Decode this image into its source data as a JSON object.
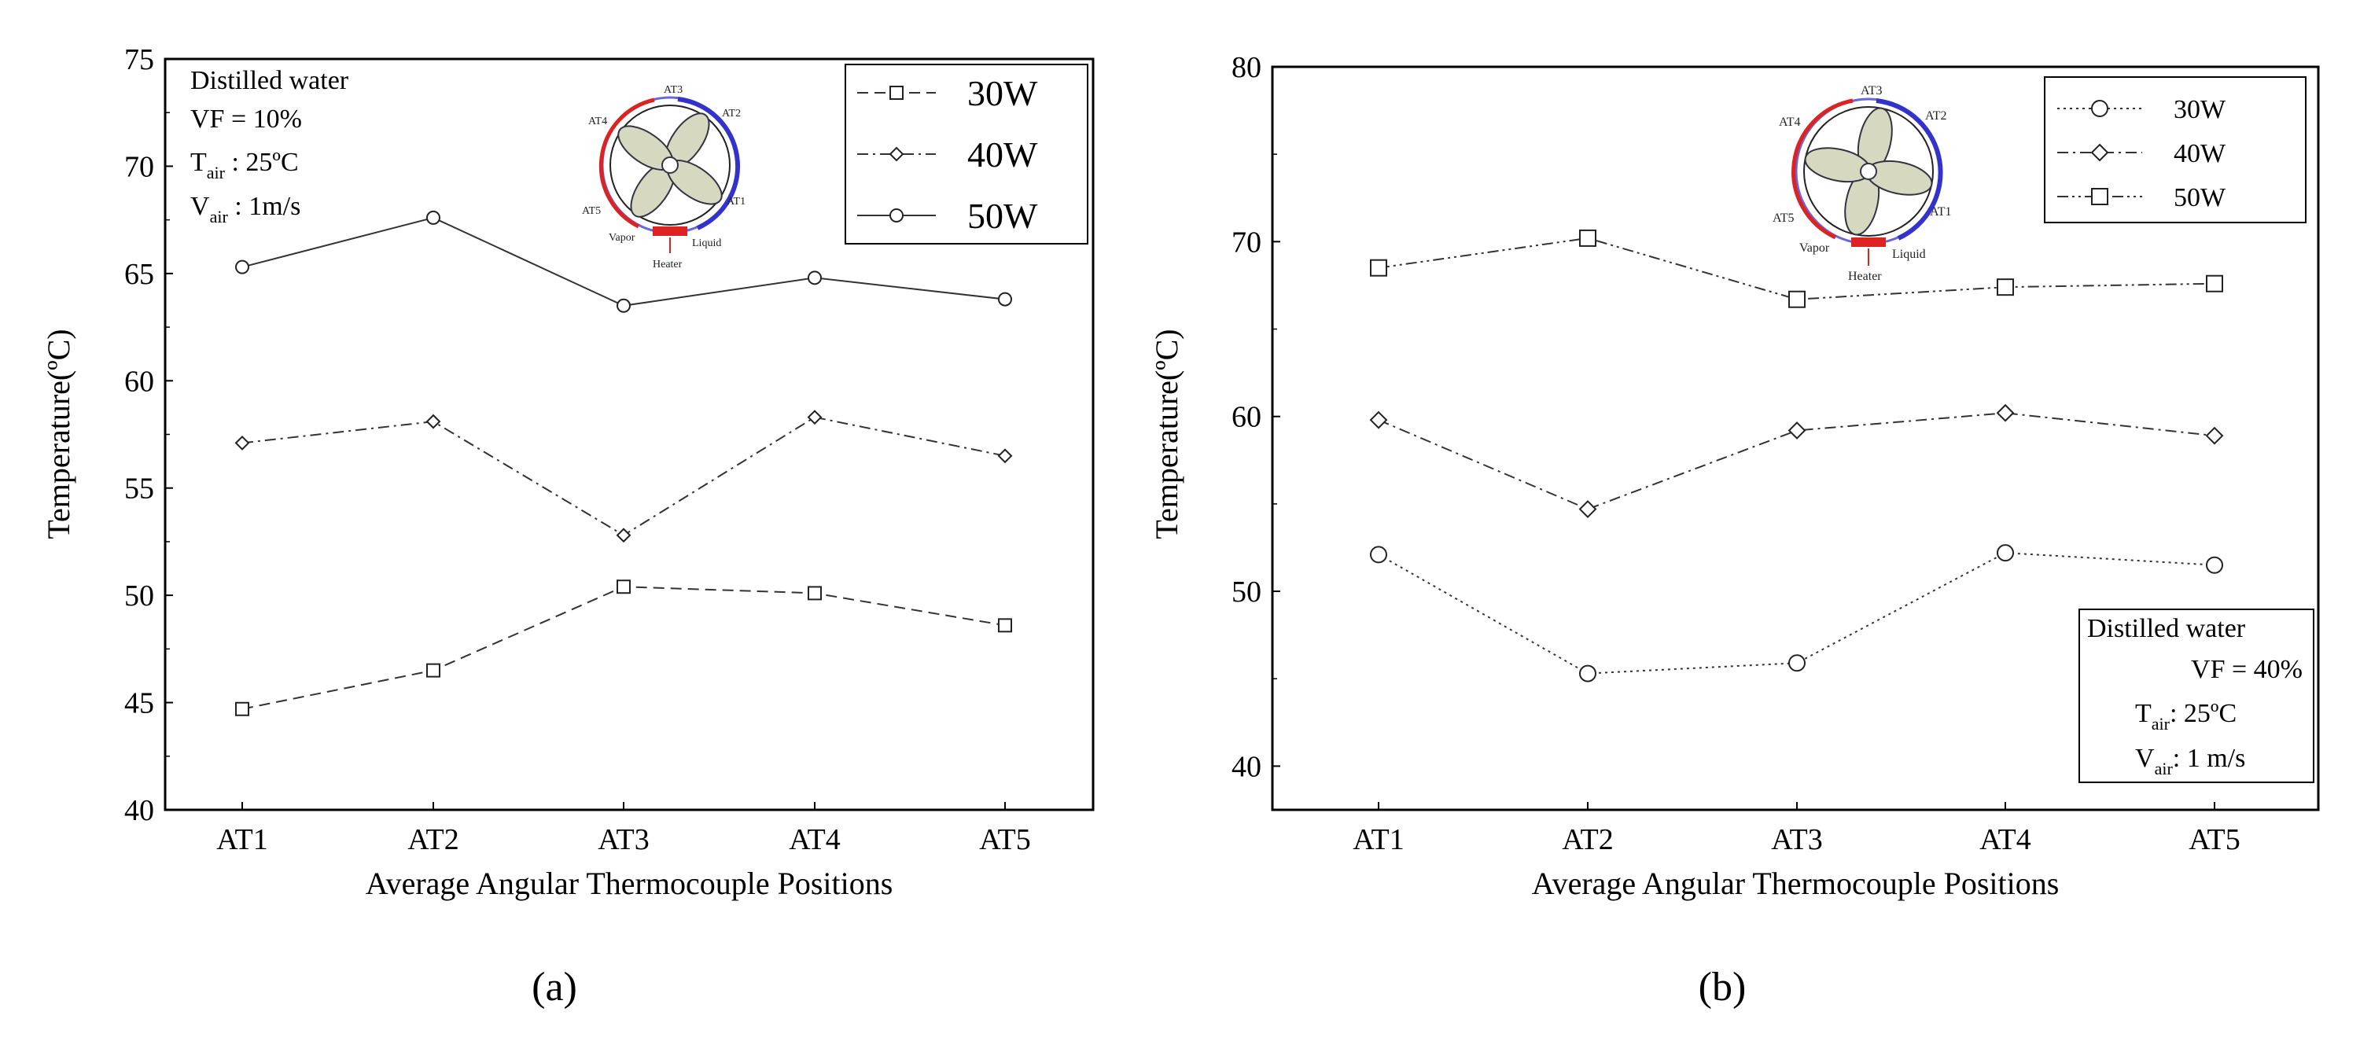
{
  "chart_data": [
    {
      "type": "line",
      "panel_label": "(a)",
      "xlabel": "Average Angular Thermocouple Positions",
      "ylabel": "Temperature(ºC)",
      "categories": [
        "AT1",
        "AT2",
        "AT3",
        "AT4",
        "AT5"
      ],
      "ylim": [
        40,
        75
      ],
      "yticks": [
        40,
        45,
        50,
        55,
        60,
        65,
        70,
        75
      ],
      "legend_position": "top-right",
      "series": [
        {
          "name": "30W",
          "marker": "square",
          "dash": "dash",
          "values": [
            44.7,
            46.5,
            50.4,
            50.1,
            48.6
          ]
        },
        {
          "name": "40W",
          "marker": "diamond",
          "dash": "dashdot",
          "values": [
            57.1,
            58.1,
            52.8,
            58.3,
            56.5
          ]
        },
        {
          "name": "50W",
          "marker": "circle",
          "dash": "solid",
          "values": [
            65.3,
            67.6,
            63.5,
            64.8,
            63.8
          ]
        }
      ],
      "annotation": {
        "line1": "Distilled water",
        "line2": "VF = 10%",
        "line3_prefix": "T",
        "line3_sub": "air",
        "line3_rest": " : 25ºC",
        "line4_prefix": "V",
        "line4_sub": "air",
        "line4_rest": " : 1m/s"
      },
      "inset_labels": {
        "at1": "AT1",
        "at2": "AT2",
        "at3": "AT3",
        "at4": "AT4",
        "at5": "AT5",
        "vapor": "Vapor",
        "liquid": "Liquid",
        "heater": "Heater"
      }
    },
    {
      "type": "line",
      "panel_label": "(b)",
      "xlabel": "Average Angular Thermocouple Positions",
      "ylabel": "Temperature(ºC)",
      "categories": [
        "AT1",
        "AT2",
        "AT3",
        "AT4",
        "AT5"
      ],
      "ylim": [
        37.5,
        80
      ],
      "yticks": [
        40,
        50,
        60,
        70,
        80
      ],
      "legend_position": "top-right",
      "series": [
        {
          "name": "30W",
          "marker": "circle",
          "dash": "dot",
          "values": [
            52.1,
            45.3,
            45.9,
            52.2,
            51.5
          ]
        },
        {
          "name": "40W",
          "marker": "diamond",
          "dash": "dashdot",
          "values": [
            59.8,
            54.7,
            59.2,
            60.2,
            58.9
          ]
        },
        {
          "name": "50W",
          "marker": "square",
          "dash": "dashdotdot",
          "values": [
            68.5,
            70.2,
            66.7,
            67.4,
            67.6
          ]
        }
      ],
      "annotation": {
        "line1": "Distilled water",
        "line2": "VF = 40%",
        "line3_prefix": "T",
        "line3_sub": "air",
        "line3_rest": ":   25ºC",
        "line4_prefix": "V",
        "line4_sub": "air",
        "line4_rest": ": 1 m/s"
      },
      "inset_labels": {
        "at1": "AT1",
        "at2": "AT2",
        "at3": "AT3",
        "at4": "AT4",
        "at5": "AT5",
        "vapor": "Vapor",
        "liquid": "Liquid",
        "heater": "Heater"
      }
    }
  ]
}
